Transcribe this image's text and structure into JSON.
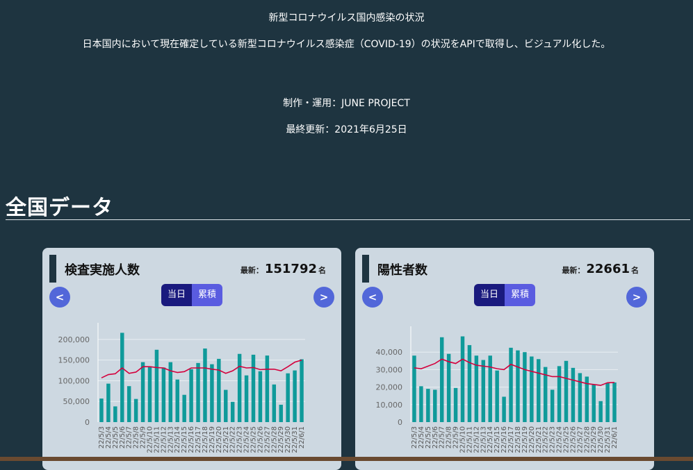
{
  "header": {
    "title": "新型コロナウイルス国内感染の状況",
    "description": "日本国内において現在確定している新型コロナウイルス感染症（COVID-19）の状況をAPIで取得し、ビジュアル化した。",
    "credit": "制作・運用：JUNE PROJECT",
    "updated": "最終更新：2021年6月25日"
  },
  "section": {
    "title": "全国データ"
  },
  "toggle": {
    "daily": "当日",
    "cumulative": "累積"
  },
  "nav": {
    "prev": "<",
    "next": ">"
  },
  "colors": {
    "bar": "#0f9a9a",
    "line": "#d4003c",
    "background": "#1e3440",
    "card": "#cdd8e1"
  },
  "cards": [
    {
      "title": "検査実施人数",
      "latest_label": "最新：",
      "latest_value": "151792",
      "unit": "名"
    },
    {
      "title": "陽性者数",
      "latest_label": "最新：",
      "latest_value": "22661",
      "unit": "名"
    }
  ],
  "chart_data": [
    {
      "type": "bar",
      "title": "検査実施人数",
      "x": [
        "2022/5/3",
        "2022/5/4",
        "2022/5/5",
        "2022/5/6",
        "2022/5/7",
        "2022/5/8",
        "2022/5/9",
        "2022/5/10",
        "2022/5/11",
        "2022/5/12",
        "2022/5/13",
        "2022/5/14",
        "2022/5/15",
        "2022/5/16",
        "2022/5/17",
        "2022/5/18",
        "2022/5/19",
        "2022/5/20",
        "2022/5/21",
        "2022/5/22",
        "2022/5/23",
        "2022/5/24",
        "2022/5/25",
        "2022/5/26",
        "2022/5/27",
        "2022/5/28",
        "2022/5/29",
        "2022/5/30",
        "2022/5/31",
        "2022/6/1"
      ],
      "x_tick_labels": [
        "22/5/3",
        "22/5/4",
        "22/5/5",
        "22/5/6",
        "22/5/7",
        "22/5/8",
        "22/5/9",
        "22/5/10",
        "22/5/11",
        "22/5/12",
        "22/5/13",
        "22/5/14",
        "22/5/15",
        "22/5/16",
        "22/5/17",
        "22/5/18",
        "22/5/19",
        "22/5/20",
        "22/5/21",
        "22/5/22",
        "22/5/23",
        "22/5/24",
        "22/5/25",
        "22/5/26",
        "22/5/27",
        "22/5/28",
        "22/5/29",
        "22/5/30",
        "22/5/31",
        "22/6/1"
      ],
      "bars": [
        57000,
        93000,
        38000,
        216000,
        87000,
        56000,
        145000,
        135000,
        175000,
        132000,
        145000,
        103000,
        66000,
        128000,
        143000,
        178000,
        140000,
        153000,
        78000,
        49000,
        165000,
        113000,
        163000,
        123000,
        161000,
        91000,
        42000,
        118000,
        125000,
        152000
      ],
      "line": [
        107000,
        115000,
        117000,
        131000,
        118000,
        121000,
        134000,
        134000,
        132000,
        131000,
        124000,
        120000,
        122000,
        131000,
        131000,
        131000,
        128000,
        126000,
        118000,
        124000,
        135000,
        131000,
        132000,
        127000,
        128000,
        128000,
        124000,
        134000,
        145000,
        150000
      ],
      "y_ticks": [
        0,
        50000,
        100000,
        150000,
        200000
      ],
      "y_tick_labels": [
        "0",
        "50,000",
        "100,000",
        "150,000",
        "200,000"
      ],
      "ylim": [
        0,
        220000
      ],
      "grid": true
    },
    {
      "type": "bar",
      "title": "陽性者数",
      "x": [
        "2022/5/3",
        "2022/5/4",
        "2022/5/5",
        "2022/5/6",
        "2022/5/7",
        "2022/5/8",
        "2022/5/9",
        "2022/5/10",
        "2022/5/11",
        "2022/5/12",
        "2022/5/13",
        "2022/5/14",
        "2022/5/15",
        "2022/5/16",
        "2022/5/17",
        "2022/5/18",
        "2022/5/19",
        "2022/5/20",
        "2022/5/21",
        "2022/5/22",
        "2022/5/23",
        "2022/5/24",
        "2022/5/25",
        "2022/5/26",
        "2022/5/27",
        "2022/5/28",
        "2022/5/29",
        "2022/5/30",
        "2022/5/31",
        "2022/6/1"
      ],
      "x_tick_labels": [
        "22/5/3",
        "22/5/4",
        "22/5/5",
        "22/5/6",
        "22/5/7",
        "22/5/8",
        "22/5/9",
        "22/5/10",
        "22/5/11",
        "22/5/12",
        "22/5/13",
        "22/5/14",
        "22/5/15",
        "22/5/16",
        "22/5/17",
        "22/5/18",
        "22/5/19",
        "22/5/20",
        "22/5/21",
        "22/5/22",
        "22/5/23",
        "22/5/24",
        "22/5/25",
        "22/5/26",
        "22/5/27",
        "22/5/28",
        "22/5/29",
        "22/5/30",
        "22/5/31",
        "22/6/1"
      ],
      "bars": [
        38000,
        20500,
        19000,
        18500,
        48500,
        39000,
        19500,
        49000,
        44000,
        38000,
        35500,
        38000,
        29500,
        14500,
        42500,
        41000,
        40000,
        37500,
        36000,
        31500,
        18500,
        32000,
        35000,
        31000,
        28000,
        26000,
        21500,
        12000,
        22500,
        22661
      ],
      "line": [
        31000,
        30500,
        32000,
        33500,
        36000,
        34500,
        33500,
        36000,
        34000,
        32500,
        32000,
        31500,
        30500,
        30000,
        33000,
        31500,
        30000,
        29000,
        28000,
        27000,
        26000,
        26000,
        25000,
        24000,
        23000,
        22000,
        21500,
        21000,
        22500,
        22661
      ],
      "y_ticks": [
        0,
        10000,
        20000,
        30000,
        40000
      ],
      "y_tick_labels": [
        "0",
        "10,000",
        "20,000",
        "30,000",
        "40,000"
      ],
      "ylim": [
        0,
        50000
      ],
      "grid": true
    }
  ]
}
